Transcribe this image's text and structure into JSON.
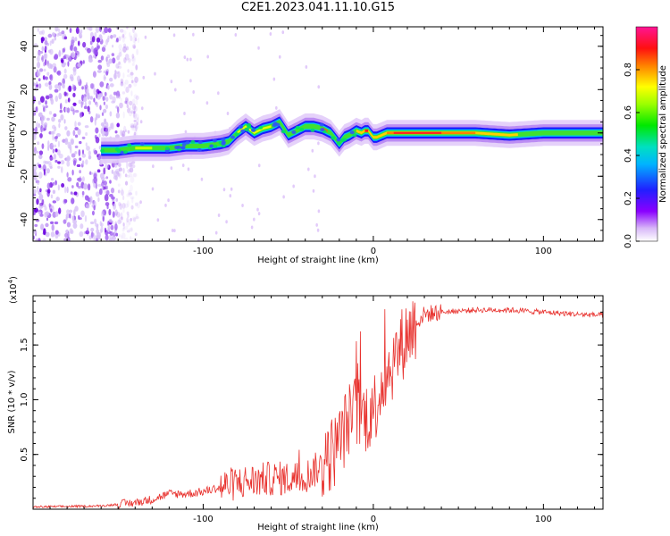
{
  "title": "C2E1.2023.041.11.10.G15",
  "chart_data": [
    {
      "type": "heatmap",
      "title": "C2E1.2023.041.11.10.G15",
      "xlabel": "Height of straight line (km)",
      "ylabel": "Frequency (Hz)",
      "xlim": [
        -200,
        135
      ],
      "ylim": [
        -50,
        49
      ],
      "xticks": [
        -100,
        0,
        100
      ],
      "yticks": [
        -40,
        -20,
        0,
        20,
        40
      ],
      "colorbar": {
        "label": "Normalized spectral amplitude",
        "range": [
          0.0,
          1.0
        ],
        "ticks": [
          0.0,
          0.2,
          0.4,
          0.6,
          0.8
        ]
      },
      "ridge": {
        "x": [
          -160,
          -150,
          -140,
          -130,
          -120,
          -110,
          -100,
          -90,
          -85,
          -80,
          -75,
          -70,
          -65,
          -60,
          -55,
          -50,
          -45,
          -40,
          -35,
          -30,
          -25,
          -22,
          -20,
          -17,
          -14,
          -10,
          -7,
          -5,
          -3,
          -1,
          0,
          2,
          5,
          8,
          10,
          20,
          40,
          60,
          80,
          100,
          120,
          135
        ],
        "y": [
          -8,
          -8,
          -7,
          -7,
          -7,
          -6,
          -6,
          -5,
          -4,
          0,
          3,
          0,
          2,
          3,
          5,
          -1,
          1,
          3,
          3,
          2,
          0,
          -3,
          -5,
          -2,
          -1,
          1,
          0,
          1,
          1,
          -1,
          -2,
          -2,
          -1,
          0,
          0,
          0,
          0,
          0,
          -1,
          0,
          0,
          0
        ]
      },
      "noise_region_x": [
        -200,
        -150
      ]
    },
    {
      "type": "line",
      "xlabel": "Height of straight line (km)",
      "ylabel": "SNR (10 * v/v)",
      "multiplier": "(x10",
      "multiplier_exp": "4",
      "multiplier_close": ")",
      "xlim": [
        -200,
        135
      ],
      "ylim": [
        0,
        1.95
      ],
      "xticks": [
        -100,
        0,
        100
      ],
      "yticks": [
        0.5,
        1.0,
        1.5
      ],
      "color": "#e8302c",
      "envelope": {
        "x": [
          -200,
          -160,
          -140,
          -130,
          -120,
          -110,
          -100,
          -90,
          -80,
          -70,
          -60,
          -50,
          -40,
          -30,
          -20,
          -15,
          -10,
          -5,
          0,
          5,
          10,
          15,
          20,
          25,
          30,
          40,
          60,
          80,
          100,
          120,
          135
        ],
        "y": [
          0.02,
          0.03,
          0.06,
          0.09,
          0.14,
          0.14,
          0.16,
          0.2,
          0.24,
          0.26,
          0.28,
          0.28,
          0.3,
          0.4,
          0.6,
          0.8,
          0.9,
          0.85,
          0.9,
          1.15,
          1.3,
          1.45,
          1.6,
          1.7,
          1.78,
          1.8,
          1.82,
          1.82,
          1.8,
          1.78,
          1.77
        ]
      }
    }
  ]
}
